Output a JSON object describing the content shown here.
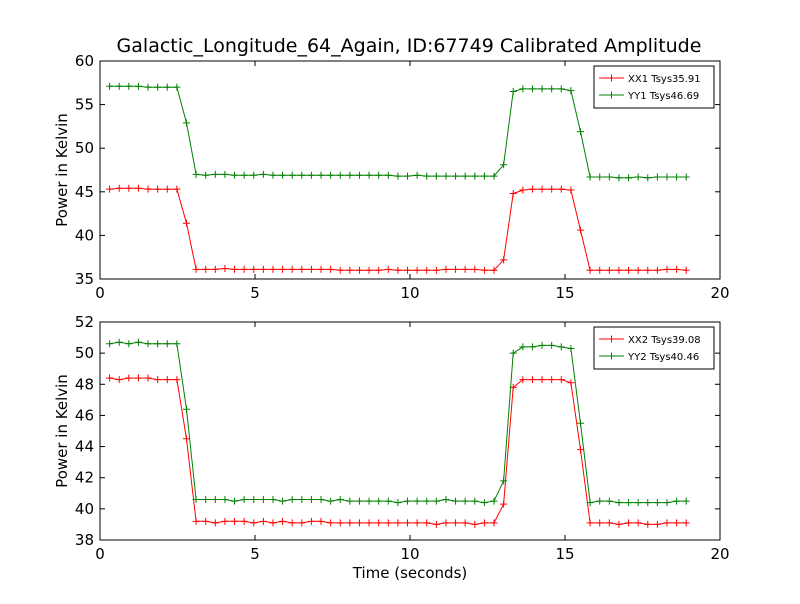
{
  "figure_title": "Galactic_Longitude_64_Again, ID:67749 Calibrated Amplitude",
  "colors": {
    "red": "#ff0000",
    "green": "#008000",
    "axes": "#000000",
    "background": "#ffffff"
  },
  "chart_data": [
    {
      "type": "line",
      "title": "Galactic_Longitude_64_Again, ID:67749 Calibrated Amplitude",
      "xlabel": "",
      "ylabel": "Power in Kelvin",
      "xlim": [
        0,
        20
      ],
      "ylim": [
        35,
        60
      ],
      "xticks": [
        0,
        5,
        10,
        15,
        20
      ],
      "yticks": [
        35,
        40,
        45,
        50,
        55,
        60
      ],
      "grid": false,
      "legend_position": "upper right",
      "marker": "+",
      "x": [
        0.31,
        0.62,
        0.93,
        1.24,
        1.55,
        1.86,
        2.17,
        2.48,
        2.79,
        3.1,
        3.41,
        3.72,
        4.03,
        4.34,
        4.65,
        4.96,
        5.27,
        5.58,
        5.89,
        6.2,
        6.51,
        6.82,
        7.13,
        7.44,
        7.75,
        8.06,
        8.37,
        8.68,
        8.99,
        9.3,
        9.61,
        9.92,
        10.23,
        10.54,
        10.85,
        11.16,
        11.47,
        11.78,
        12.09,
        12.4,
        12.71,
        13.02,
        13.33,
        13.64,
        13.95,
        14.26,
        14.57,
        14.88,
        15.19,
        15.5,
        15.81,
        16.12,
        16.43,
        16.74,
        17.05,
        17.36,
        17.67,
        17.98,
        18.29,
        18.6,
        18.91
      ],
      "series": [
        {
          "name": "XX1 Tsys35.91",
          "color": "#ff0000",
          "values": [
            45.3,
            45.4,
            45.4,
            45.4,
            45.3,
            45.3,
            45.3,
            45.3,
            41.4,
            36.1,
            36.1,
            36.1,
            36.2,
            36.1,
            36.1,
            36.1,
            36.1,
            36.1,
            36.1,
            36.1,
            36.1,
            36.1,
            36.1,
            36.1,
            36.0,
            36.0,
            36.0,
            36.0,
            36.0,
            36.1,
            36.0,
            36.0,
            36.0,
            36.0,
            36.0,
            36.1,
            36.1,
            36.1,
            36.1,
            36.0,
            36.0,
            37.2,
            44.8,
            45.2,
            45.3,
            45.3,
            45.3,
            45.3,
            45.2,
            40.6,
            36.0,
            36.0,
            36.0,
            36.0,
            36.0,
            36.0,
            36.0,
            36.0,
            36.1,
            36.1,
            36.0
          ]
        },
        {
          "name": "YY1 Tsys46.69",
          "color": "#008000",
          "values": [
            57.1,
            57.1,
            57.1,
            57.1,
            57.0,
            57.0,
            57.0,
            57.0,
            52.9,
            47.0,
            46.9,
            47.0,
            47.0,
            46.9,
            46.9,
            46.9,
            47.0,
            46.9,
            46.9,
            46.9,
            46.9,
            46.9,
            46.9,
            46.9,
            46.9,
            46.9,
            46.9,
            46.9,
            46.9,
            46.9,
            46.8,
            46.8,
            46.9,
            46.8,
            46.8,
            46.8,
            46.8,
            46.8,
            46.8,
            46.8,
            46.8,
            48.1,
            56.5,
            56.8,
            56.8,
            56.8,
            56.8,
            56.8,
            56.6,
            51.9,
            46.7,
            46.7,
            46.7,
            46.6,
            46.6,
            46.7,
            46.6,
            46.7,
            46.7,
            46.7,
            46.7
          ]
        }
      ]
    },
    {
      "type": "line",
      "title": "",
      "xlabel": "Time (seconds)",
      "ylabel": "Power in Kelvin",
      "xlim": [
        0,
        20
      ],
      "ylim": [
        38,
        52
      ],
      "xticks": [
        0,
        5,
        10,
        15,
        20
      ],
      "yticks": [
        38,
        40,
        42,
        44,
        46,
        48,
        50,
        52
      ],
      "grid": false,
      "legend_position": "upper right",
      "marker": "+",
      "x": [
        0.31,
        0.62,
        0.93,
        1.24,
        1.55,
        1.86,
        2.17,
        2.48,
        2.79,
        3.1,
        3.41,
        3.72,
        4.03,
        4.34,
        4.65,
        4.96,
        5.27,
        5.58,
        5.89,
        6.2,
        6.51,
        6.82,
        7.13,
        7.44,
        7.75,
        8.06,
        8.37,
        8.68,
        8.99,
        9.3,
        9.61,
        9.92,
        10.23,
        10.54,
        10.85,
        11.16,
        11.47,
        11.78,
        12.09,
        12.4,
        12.71,
        13.02,
        13.33,
        13.64,
        13.95,
        14.26,
        14.57,
        14.88,
        15.19,
        15.5,
        15.81,
        16.12,
        16.43,
        16.74,
        17.05,
        17.36,
        17.67,
        17.98,
        18.29,
        18.6,
        18.91
      ],
      "series": [
        {
          "name": "XX2 Tsys39.08",
          "color": "#ff0000",
          "values": [
            48.4,
            48.3,
            48.4,
            48.4,
            48.4,
            48.3,
            48.3,
            48.3,
            44.5,
            39.2,
            39.2,
            39.1,
            39.2,
            39.2,
            39.2,
            39.1,
            39.2,
            39.1,
            39.2,
            39.1,
            39.1,
            39.2,
            39.2,
            39.1,
            39.1,
            39.1,
            39.1,
            39.1,
            39.1,
            39.1,
            39.1,
            39.1,
            39.1,
            39.1,
            39.0,
            39.1,
            39.1,
            39.1,
            39.0,
            39.1,
            39.1,
            40.3,
            47.8,
            48.3,
            48.3,
            48.3,
            48.3,
            48.3,
            48.1,
            43.8,
            39.1,
            39.1,
            39.1,
            39.0,
            39.1,
            39.1,
            39.0,
            39.0,
            39.1,
            39.1,
            39.1
          ]
        },
        {
          "name": "YY2 Tsys40.46",
          "color": "#008000",
          "values": [
            50.6,
            50.7,
            50.6,
            50.7,
            50.6,
            50.6,
            50.6,
            50.6,
            46.4,
            40.6,
            40.6,
            40.6,
            40.6,
            40.5,
            40.6,
            40.6,
            40.6,
            40.6,
            40.5,
            40.6,
            40.6,
            40.6,
            40.6,
            40.5,
            40.6,
            40.5,
            40.5,
            40.5,
            40.5,
            40.5,
            40.4,
            40.5,
            40.5,
            40.5,
            40.5,
            40.6,
            40.5,
            40.5,
            40.5,
            40.4,
            40.5,
            41.8,
            50.0,
            50.4,
            50.4,
            50.5,
            50.5,
            50.4,
            50.3,
            45.5,
            40.4,
            40.5,
            40.5,
            40.4,
            40.4,
            40.4,
            40.4,
            40.4,
            40.4,
            40.5,
            40.5
          ]
        }
      ]
    }
  ]
}
